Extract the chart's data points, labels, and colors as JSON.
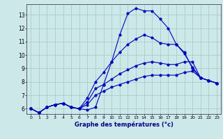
{
  "xlabel": "Graphe des températures (°c)",
  "background_color": "#cce8e8",
  "line_color": "#0000bb",
  "grid_color": "#aacccc",
  "xlim": [
    -0.5,
    23.5
  ],
  "ylim": [
    5.6,
    13.8
  ],
  "yticks": [
    6,
    7,
    8,
    9,
    10,
    11,
    12,
    13
  ],
  "xticks": [
    0,
    1,
    2,
    3,
    4,
    5,
    6,
    7,
    8,
    9,
    10,
    11,
    12,
    13,
    14,
    15,
    16,
    17,
    18,
    19,
    20,
    21,
    22,
    23
  ],
  "hours": [
    0,
    1,
    2,
    3,
    4,
    5,
    6,
    7,
    8,
    9,
    10,
    11,
    12,
    13,
    14,
    15,
    16,
    17,
    18,
    19,
    20,
    21,
    22,
    23
  ],
  "line1": [
    6.0,
    5.7,
    6.1,
    6.3,
    6.4,
    6.1,
    6.0,
    5.9,
    6.1,
    7.8,
    9.5,
    11.5,
    13.1,
    13.5,
    13.3,
    13.3,
    12.7,
    12.0,
    10.8,
    10.2,
    9.0,
    8.3,
    8.1,
    7.9
  ],
  "line2": [
    6.0,
    5.7,
    6.1,
    6.3,
    6.4,
    6.1,
    6.0,
    6.8,
    8.0,
    8.7,
    9.5,
    10.2,
    10.8,
    11.2,
    11.5,
    11.3,
    10.9,
    10.8,
    10.8,
    10.1,
    9.1,
    8.3,
    8.1,
    7.9
  ],
  "line3": [
    6.0,
    5.7,
    6.1,
    6.3,
    6.4,
    6.1,
    6.0,
    6.5,
    7.5,
    7.8,
    8.2,
    8.6,
    8.9,
    9.2,
    9.4,
    9.5,
    9.4,
    9.3,
    9.3,
    9.5,
    9.5,
    8.3,
    8.1,
    7.9
  ],
  "line4": [
    6.0,
    5.7,
    6.1,
    6.3,
    6.4,
    6.1,
    6.0,
    6.3,
    7.0,
    7.3,
    7.6,
    7.8,
    8.0,
    8.2,
    8.4,
    8.5,
    8.5,
    8.5,
    8.5,
    8.7,
    8.8,
    8.3,
    8.1,
    7.9
  ]
}
